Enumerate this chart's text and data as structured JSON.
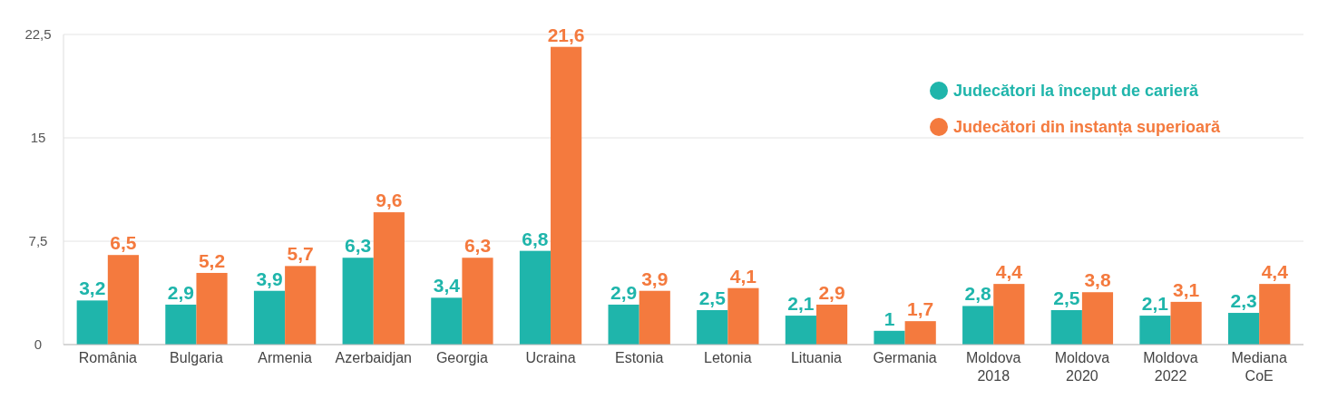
{
  "chart_data": {
    "type": "bar",
    "categories": [
      "România",
      "Bulgaria",
      "Armenia",
      "Azerbaidjan",
      "Georgia",
      "Ucraina",
      "Estonia",
      "Letonia",
      "Lituania",
      "Germania",
      "Moldova 2018",
      "Moldova 2020",
      "Moldova 2022",
      "Mediana CoE"
    ],
    "series": [
      {
        "name": "Judecători la început de carieră",
        "color": "#1fb5ab",
        "values": [
          3.2,
          2.9,
          3.9,
          6.3,
          3.4,
          6.8,
          2.9,
          2.5,
          2.1,
          1,
          2.8,
          2.5,
          2.1,
          2.3
        ],
        "value_labels": [
          "3,2",
          "2,9",
          "3,9",
          "6,3",
          "3,4",
          "6,8",
          "2,9",
          "2,5",
          "2,1",
          "1",
          "2,8",
          "2,5",
          "2,1",
          "2,3"
        ]
      },
      {
        "name": "Judecători din instanța superioară",
        "color": "#f47a3e",
        "values": [
          6.5,
          5.2,
          5.7,
          9.6,
          6.3,
          21.6,
          3.9,
          4.1,
          2.9,
          1.7,
          4.4,
          3.8,
          3.1,
          4.4
        ],
        "value_labels": [
          "6,5",
          "5,2",
          "5,7",
          "9,6",
          "6,3",
          "21,6",
          "3,9",
          "4,1",
          "2,9",
          "1,7",
          "4,4",
          "3,8",
          "3,1",
          "4,4"
        ]
      }
    ],
    "ylim": [
      0,
      22.5
    ],
    "yticks": [
      0,
      {
        "value": 7.5,
        "label": "7,5"
      },
      15,
      {
        "value": 22.5,
        "label": "22,5"
      }
    ],
    "grid": "y",
    "legend": "top right"
  }
}
